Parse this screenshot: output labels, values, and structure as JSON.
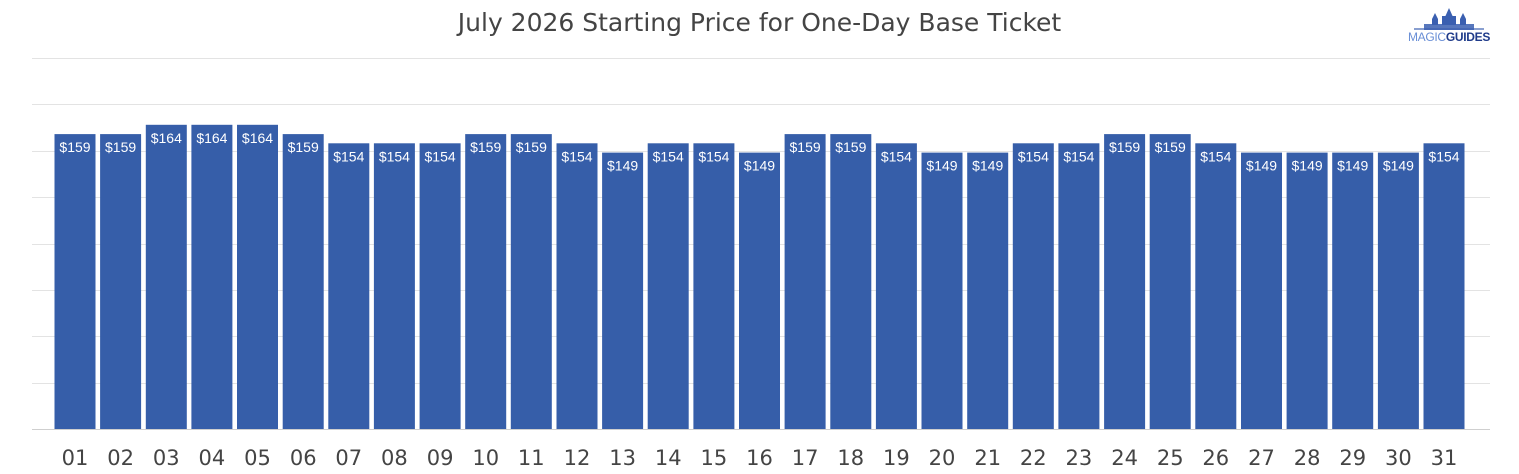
{
  "logo": {
    "part1": "MAGIC",
    "part2": "GUIDES"
  },
  "chart_data": {
    "type": "bar",
    "title": "July 2026 Starting Price for One-Day Base Ticket",
    "xlabel": "",
    "ylabel": "",
    "categories": [
      "01",
      "02",
      "03",
      "04",
      "05",
      "06",
      "07",
      "08",
      "09",
      "10",
      "11",
      "12",
      "13",
      "14",
      "15",
      "16",
      "17",
      "18",
      "19",
      "20",
      "21",
      "22",
      "23",
      "24",
      "25",
      "26",
      "27",
      "28",
      "29",
      "30",
      "31"
    ],
    "values": [
      159,
      159,
      164,
      164,
      164,
      159,
      154,
      154,
      154,
      159,
      159,
      154,
      149,
      154,
      154,
      149,
      159,
      159,
      154,
      149,
      149,
      154,
      154,
      159,
      159,
      154,
      149,
      149,
      149,
      149,
      154
    ],
    "data_labels": [
      "$159",
      "$159",
      "$164",
      "$164",
      "$164",
      "$159",
      "$154",
      "$154",
      "$154",
      "$159",
      "$159",
      "$154",
      "$149",
      "$154",
      "$154",
      "$149",
      "$159",
      "$159",
      "$154",
      "$149",
      "$149",
      "$154",
      "$154",
      "$159",
      "$159",
      "$154",
      "$149",
      "$149",
      "$149",
      "$149",
      "$154"
    ],
    "ylim": [
      0,
      200
    ],
    "grid": true,
    "bar_color": "#365ea9",
    "label_color": "#ffffff"
  }
}
